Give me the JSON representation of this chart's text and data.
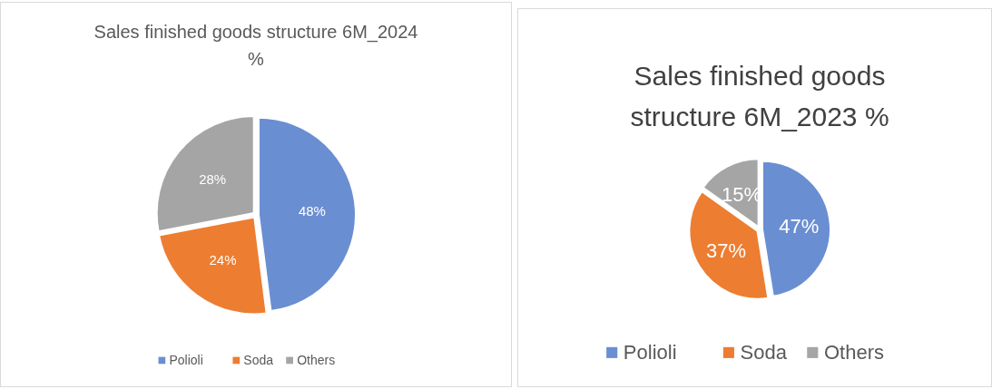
{
  "chart_data": [
    {
      "type": "pie",
      "title": "Sales finished goods structure 6M_2024 %",
      "categories": [
        "Polioli",
        "Soda",
        "Others"
      ],
      "values": [
        48,
        24,
        28
      ],
      "colors": [
        "#6a8ed2",
        "#ed7d31",
        "#a5a5a5"
      ],
      "value_labels": [
        "48%",
        "24%",
        "28%"
      ],
      "legend": "bottom"
    },
    {
      "type": "pie",
      "title": "Sales finished goods structure 6M_2023 %",
      "categories": [
        "Polioli",
        "Soda",
        "Others"
      ],
      "values": [
        47,
        37,
        15
      ],
      "colors": [
        "#6a8ed2",
        "#ed7d31",
        "#a5a5a5"
      ],
      "value_labels": [
        "47%",
        "37%",
        "15%"
      ],
      "legend": "bottom"
    }
  ]
}
